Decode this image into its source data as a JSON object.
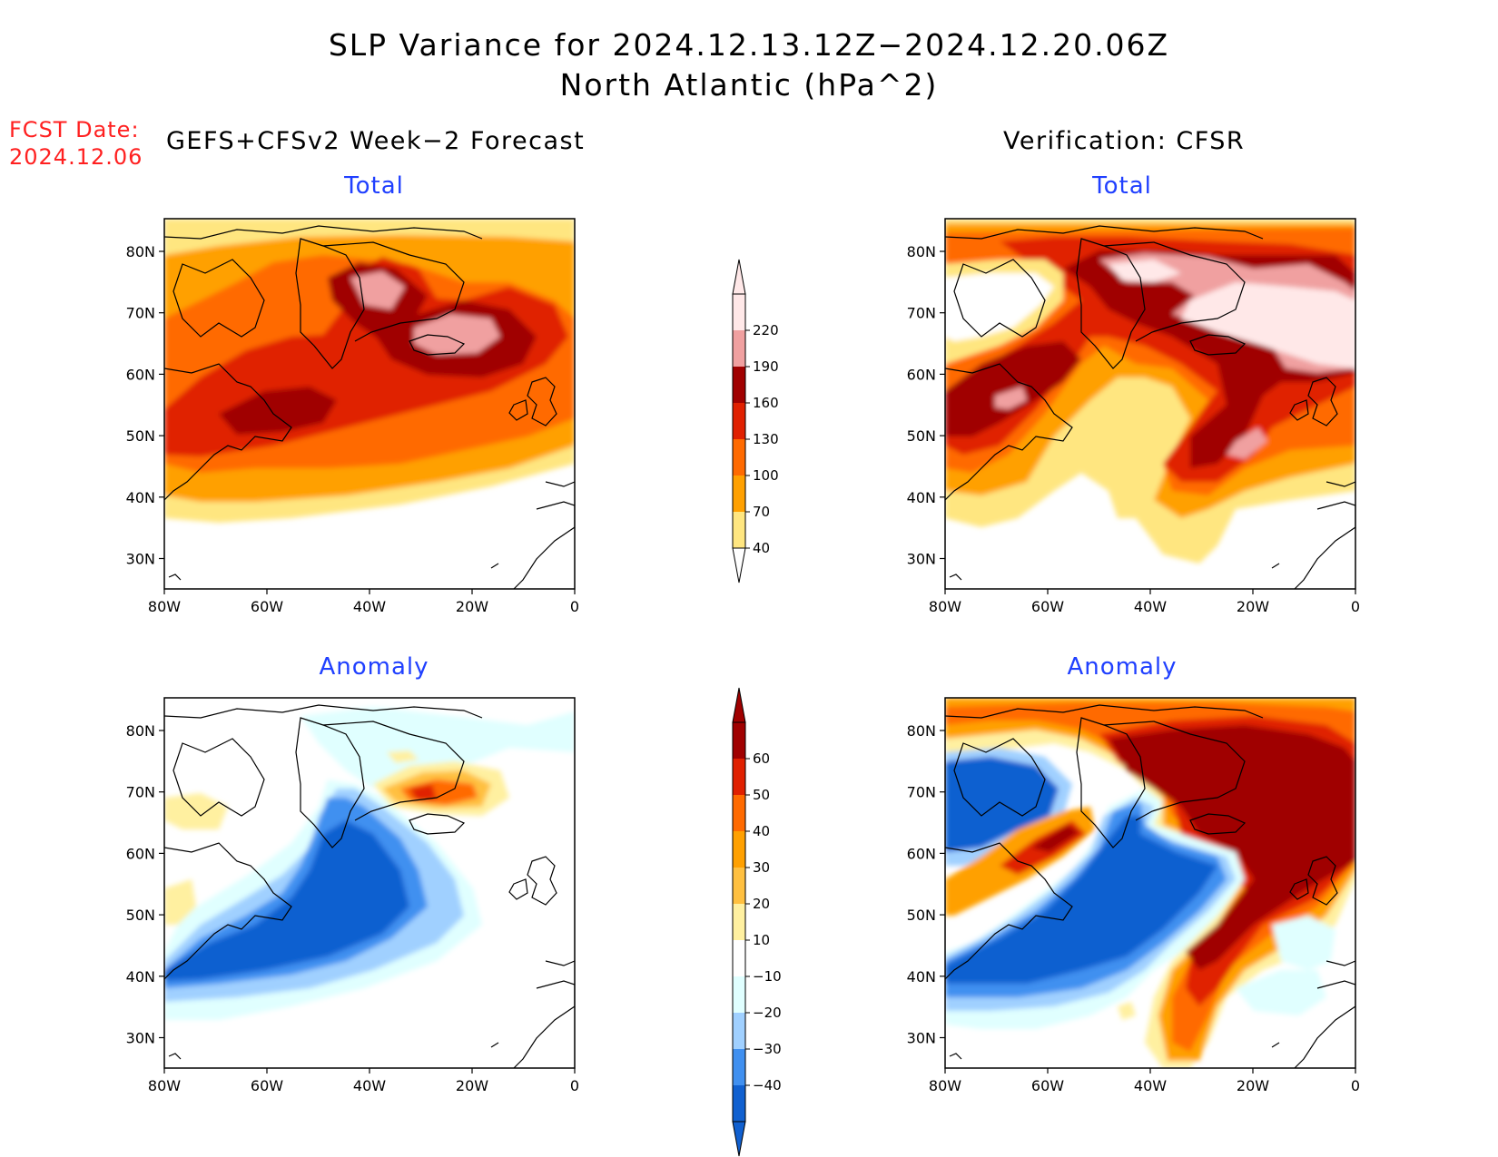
{
  "title_line1": "SLP Variance for 2024.12.13.12Z−2024.12.20.06Z",
  "title_line2": "North Atlantic (hPa^2)",
  "fcst_label": "FCST Date:",
  "fcst_date": "2024.12.06",
  "forecast_heading": "GEFS+CFSv2 Week−2 Forecast",
  "verification_heading": "Verification: CFSR",
  "panels": {
    "top_left": "Total",
    "top_right": "Total",
    "bottom_left": "Anomaly",
    "bottom_right": "Anomaly"
  },
  "axes": {
    "lat_labels": [
      "80N",
      "70N",
      "60N",
      "50N",
      "40N",
      "30N"
    ],
    "lon_labels": [
      "80W",
      "60W",
      "40W",
      "20W",
      "0"
    ]
  },
  "total_colorbar": {
    "labels": [
      "220",
      "190",
      "160",
      "130",
      "100",
      "70",
      "40"
    ],
    "colors": [
      "#ffe8e8",
      "#f0a0a0",
      "#a00000",
      "#e02000",
      "#ff6a00",
      "#ffa000",
      "#ffe680"
    ]
  },
  "anomaly_colorbar": {
    "labels": [
      "60",
      "50",
      "40",
      "30",
      "20",
      "10",
      "−10",
      "−20",
      "−30",
      "−40"
    ],
    "colors": [
      "#a00000",
      "#e02000",
      "#ff6a00",
      "#ffa000",
      "#ffc040",
      "#fff0a0",
      "#ffffff",
      "#e0ffff",
      "#a0d0ff",
      "#4090f0",
      "#1060d0"
    ]
  }
}
